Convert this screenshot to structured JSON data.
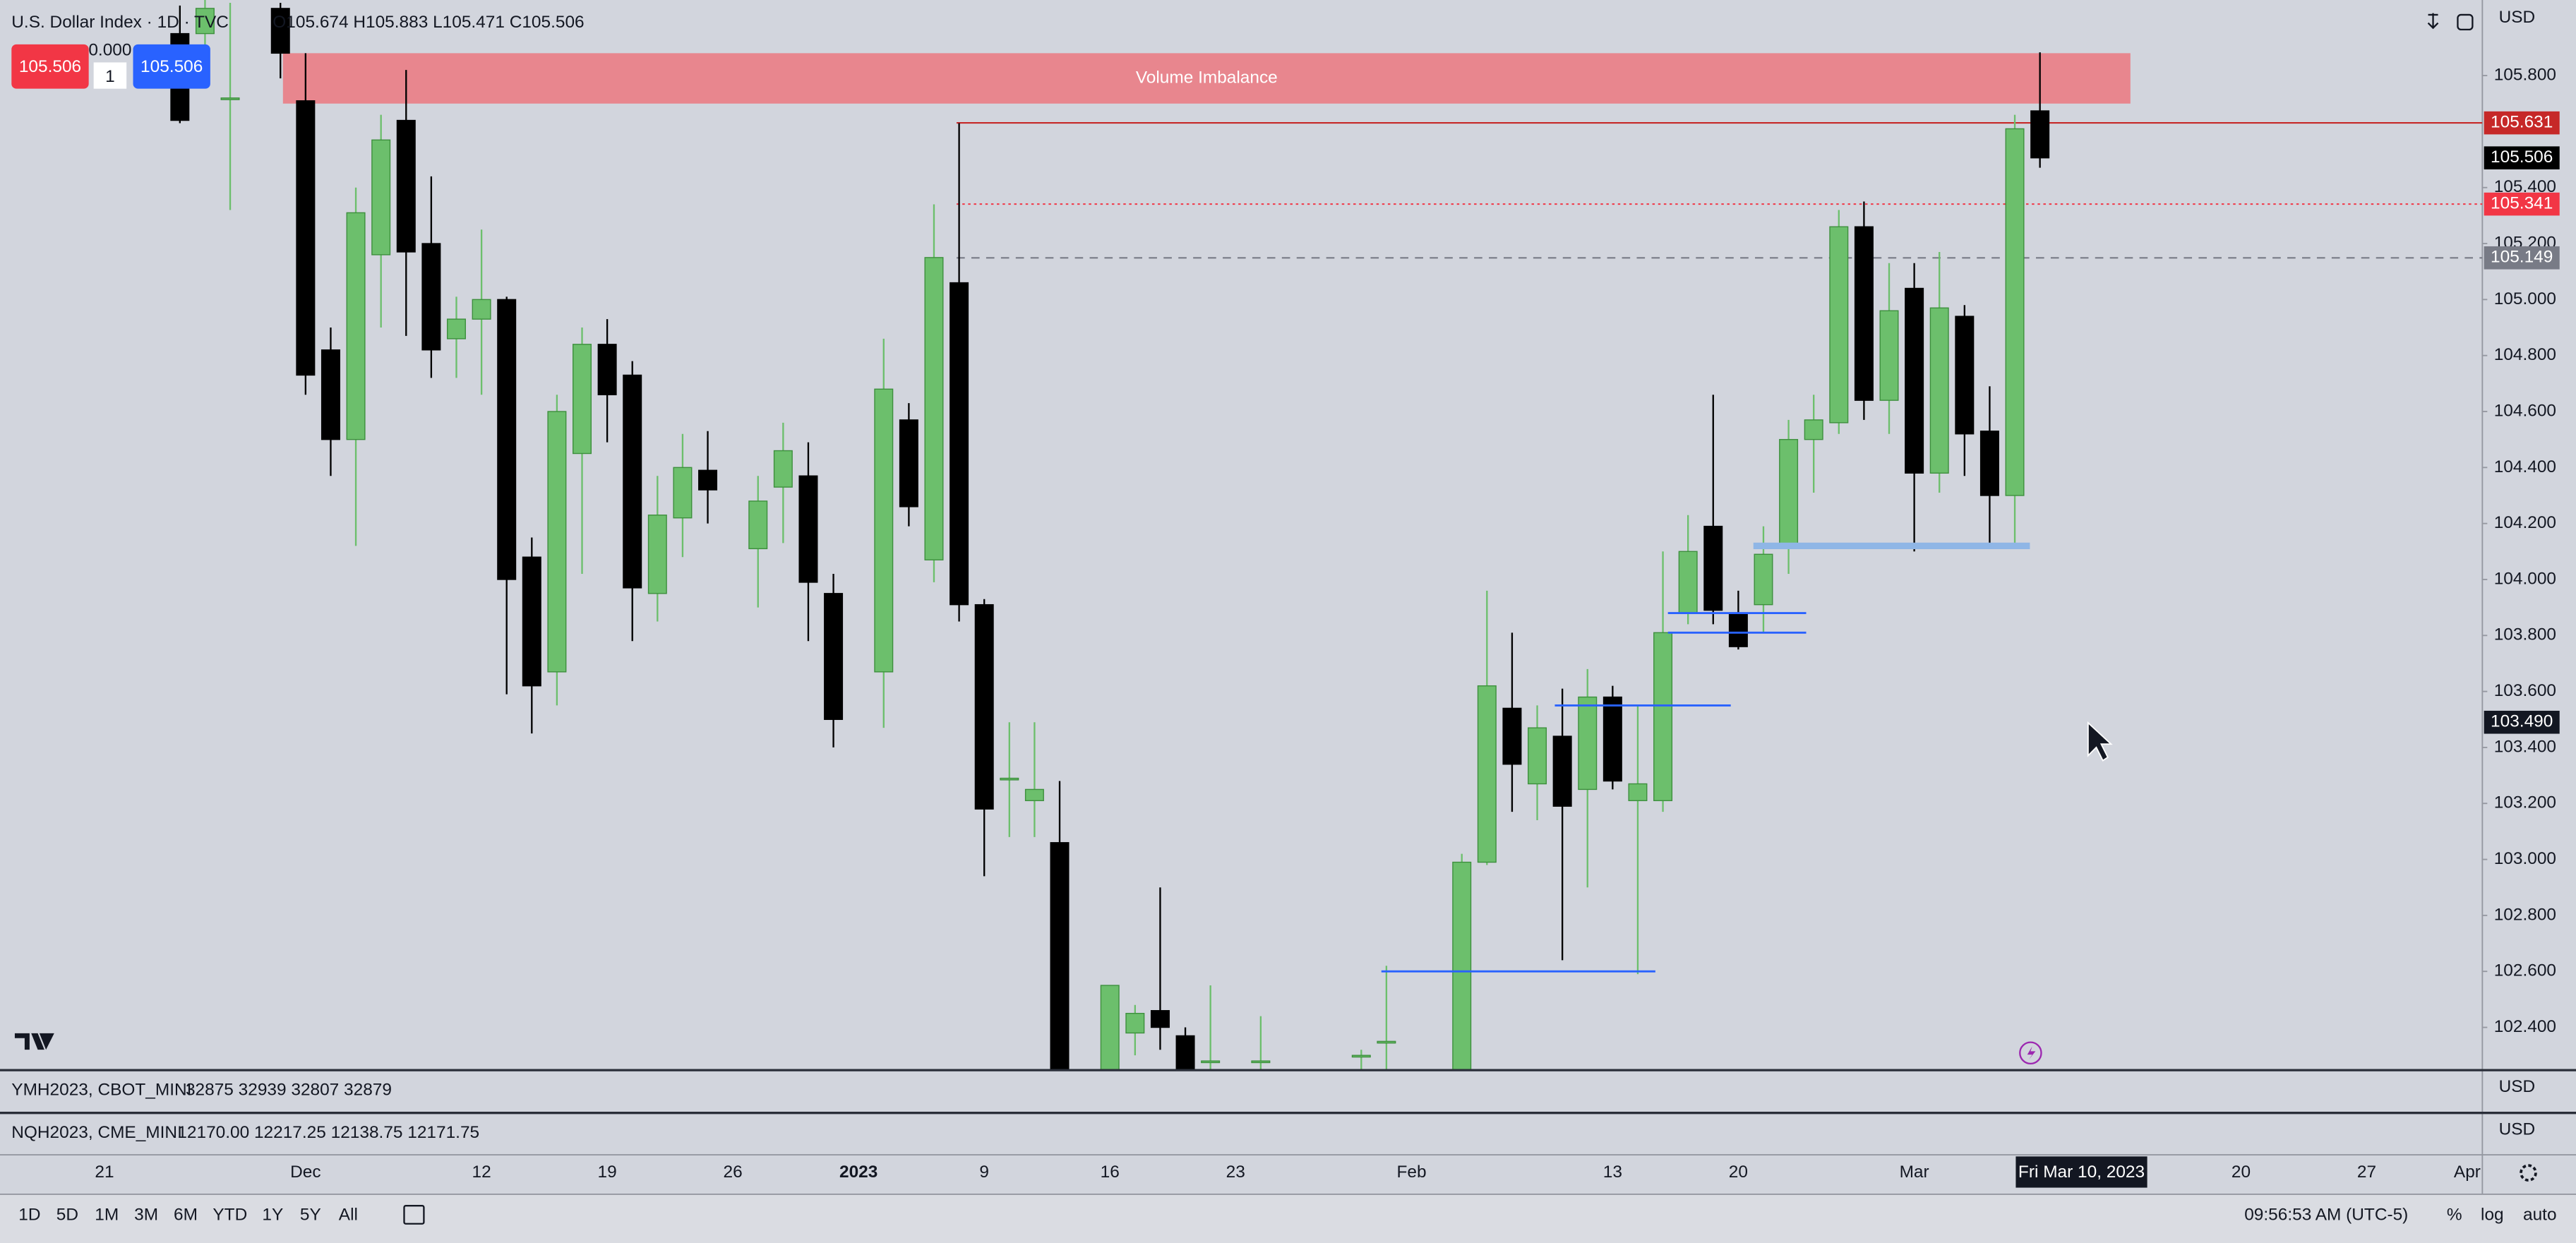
{
  "header": {
    "symbol": "U.S. Dollar Index · 1D · TVC",
    "ohlc": "O105.674 H105.883 L105.471 C105.506",
    "currency": "USD"
  },
  "order_panel": {
    "sell": "105.506",
    "spread": "0.000",
    "qty": "1",
    "buy": "105.506"
  },
  "chart_data": {
    "type": "candlestick",
    "categories": [
      "21",
      null,
      null,
      null,
      null,
      null,
      null,
      null,
      "Dec",
      null,
      null,
      null,
      null,
      null,
      null,
      "12",
      null,
      null,
      null,
      null,
      "19",
      null,
      null,
      null,
      null,
      "26",
      null,
      null,
      null,
      null,
      "2023",
      null,
      null,
      null,
      null,
      "9",
      null,
      null,
      null,
      null,
      "16",
      null,
      null,
      null,
      null,
      "23",
      null,
      null,
      null,
      null,
      null,
      null,
      "Feb",
      null,
      null,
      null,
      null,
      null,
      null,
      null,
      "13",
      null,
      null,
      null,
      null,
      "20",
      null,
      null,
      null,
      null,
      null,
      null,
      "Mar",
      null,
      null,
      null,
      null,
      null,
      null,
      null,
      null,
      null,
      null,
      null,
      null,
      "20",
      null,
      null,
      null,
      null,
      "27",
      null,
      null,
      null,
      "Apr"
    ],
    "open": [
      null,
      null,
      null,
      105.95,
      105.95,
      105.72,
      null,
      106.04,
      105.71,
      104.82,
      104.5,
      105.16,
      105.64,
      105.2,
      104.86,
      104.93,
      105.0,
      104.08,
      103.67,
      104.45,
      104.84,
      104.73,
      103.95,
      104.22,
      104.39,
      null,
      104.11,
      104.33,
      104.37,
      103.95,
      null,
      103.67,
      104.57,
      104.07,
      105.06,
      103.91,
      103.29,
      103.21,
      103.06,
      null,
      102.2,
      102.38,
      102.46,
      102.37,
      102.28,
      null,
      102.28,
      null,
      null,
      null,
      102.3,
      102.35,
      null,
      null,
      102.2,
      102.99,
      103.54,
      103.27,
      103.44,
      103.25,
      103.58,
      103.21,
      103.21,
      103.88,
      104.19,
      103.88,
      103.91,
      104.12,
      104.5,
      104.56,
      105.26,
      104.64,
      105.04,
      104.38,
      104.94,
      104.53,
      104.3,
      105.674,
      null,
      null,
      null,
      null,
      null,
      null,
      null,
      null,
      null,
      null,
      null,
      null,
      null,
      null,
      null,
      null,
      null
    ],
    "high": [
      null,
      null,
      null,
      106.05,
      106.07,
      106.06,
      null,
      106.06,
      105.88,
      104.9,
      105.4,
      105.66,
      105.82,
      105.44,
      105.01,
      105.25,
      105.01,
      104.15,
      104.66,
      104.9,
      104.93,
      104.78,
      104.37,
      104.52,
      104.53,
      null,
      104.37,
      104.56,
      104.49,
      104.02,
      null,
      104.86,
      104.63,
      105.34,
      105.63,
      103.93,
      103.49,
      103.49,
      103.28,
      null,
      102.55,
      102.48,
      102.9,
      102.4,
      102.55,
      null,
      102.44,
      null,
      null,
      null,
      102.32,
      102.62,
      null,
      null,
      103.02,
      103.96,
      103.81,
      103.55,
      103.61,
      103.68,
      103.62,
      103.55,
      104.1,
      104.23,
      104.66,
      103.96,
      104.19,
      104.57,
      104.66,
      105.32,
      105.35,
      105.13,
      105.13,
      105.17,
      104.98,
      104.69,
      105.66,
      105.883,
      null,
      null,
      null,
      null,
      null,
      null,
      null,
      null,
      null,
      null,
      null,
      null,
      null,
      null,
      null,
      null,
      null
    ],
    "low": [
      null,
      null,
      null,
      105.63,
      105.83,
      105.32,
      null,
      105.79,
      104.66,
      104.37,
      104.12,
      104.9,
      104.87,
      104.72,
      104.72,
      104.66,
      103.59,
      103.45,
      103.55,
      104.02,
      104.49,
      103.78,
      103.85,
      104.08,
      104.2,
      null,
      103.9,
      104.13,
      103.78,
      103.4,
      null,
      103.47,
      104.19,
      103.99,
      103.85,
      102.94,
      103.08,
      103.08,
      102.1,
      null,
      102.1,
      102.3,
      102.32,
      102.1,
      102.15,
      null,
      102.15,
      null,
      null,
      null,
      102.15,
      102.15,
      null,
      null,
      102.1,
      102.98,
      103.17,
      103.14,
      102.64,
      102.9,
      103.25,
      102.59,
      103.17,
      103.84,
      103.84,
      103.75,
      103.81,
      104.02,
      104.31,
      104.52,
      104.57,
      104.52,
      104.1,
      104.31,
      104.37,
      104.13,
      104.12,
      105.471,
      null,
      null,
      null,
      null,
      null,
      null,
      null,
      null,
      null,
      null,
      null,
      null,
      null,
      null,
      null,
      null,
      null
    ],
    "close": [
      null,
      null,
      null,
      105.64,
      106.04,
      105.72,
      null,
      105.88,
      104.73,
      104.5,
      105.31,
      105.57,
      105.17,
      104.82,
      104.93,
      105.0,
      104.0,
      103.62,
      104.6,
      104.84,
      104.66,
      103.97,
      104.23,
      104.4,
      104.32,
      null,
      104.28,
      104.46,
      103.99,
      103.5,
      null,
      104.68,
      104.26,
      105.15,
      103.91,
      103.18,
      103.29,
      103.25,
      102.2,
      null,
      102.55,
      102.45,
      102.4,
      102.2,
      102.28,
      null,
      102.28,
      null,
      null,
      null,
      102.3,
      102.35,
      null,
      null,
      102.99,
      103.62,
      103.34,
      103.47,
      103.19,
      103.58,
      103.28,
      103.27,
      103.81,
      104.1,
      103.89,
      103.76,
      104.09,
      104.5,
      104.57,
      105.26,
      104.64,
      104.96,
      104.38,
      104.97,
      104.52,
      104.3,
      105.61,
      105.506,
      null,
      null,
      null,
      null,
      null,
      null,
      null,
      null,
      null,
      null,
      null,
      null,
      null,
      null,
      null,
      null,
      null
    ],
    "up_color": "#6cbf6c",
    "down_color": "#000000",
    "ylim": [
      102.25,
      106.07
    ],
    "yticks": [
      {
        "value": 105.8,
        "label": "105.800"
      },
      {
        "value": 105.4,
        "label": "105.400"
      },
      {
        "value": 105.2,
        "label": "105.200"
      },
      {
        "value": 105.0,
        "label": "105.000"
      },
      {
        "value": 104.8,
        "label": "104.800"
      },
      {
        "value": 104.6,
        "label": "104.600"
      },
      {
        "value": 104.4,
        "label": "104.400"
      },
      {
        "value": 104.2,
        "label": "104.200"
      },
      {
        "value": 104.0,
        "label": "104.000"
      },
      {
        "value": 103.8,
        "label": "103.800"
      },
      {
        "value": 103.6,
        "label": "103.600"
      },
      {
        "value": 103.4,
        "label": "103.400"
      },
      {
        "value": 103.2,
        "label": "103.200"
      },
      {
        "value": 103.0,
        "label": "103.000"
      },
      {
        "value": 102.8,
        "label": "102.800"
      },
      {
        "value": 102.6,
        "label": "102.600"
      },
      {
        "value": 102.4,
        "label": "102.400"
      }
    ],
    "grid": false,
    "annotation": {
      "text": "Volume Imbalance",
      "low": 105.7,
      "high": 105.88,
      "from": 7.1,
      "to": 80.6,
      "color": "#e8868e"
    },
    "levels": [
      {
        "value": 104.12,
        "from": 65.6,
        "to": 76.6,
        "color": "#8fb6e6",
        "style": "thick"
      },
      {
        "value": 103.88,
        "from": 62.2,
        "to": 67.7,
        "color": "#2962ff",
        "style": "thin"
      },
      {
        "value": 103.81,
        "from": 62.2,
        "to": 67.7,
        "color": "#2962ff",
        "style": "thin"
      },
      {
        "value": 103.55,
        "from": 57.7,
        "to": 64.7,
        "color": "#2962ff",
        "style": "thin"
      },
      {
        "value": 102.6,
        "from": 50.8,
        "to": 61.7,
        "color": "#2962ff",
        "style": "thin"
      }
    ],
    "price_levels": [
      {
        "value": 105.631,
        "color": "#c62828",
        "line": "solid",
        "from": 33.9
      },
      {
        "value": 105.506,
        "color": "#000000"
      },
      {
        "value": 105.341,
        "color": "#f23645",
        "line": "dotted",
        "from": 33.9
      },
      {
        "value": 105.149,
        "color": "#787b86",
        "line": "dashed",
        "from": 33.9
      }
    ],
    "crosshair": {
      "price": {
        "value": 103.49,
        "label": "103.490"
      },
      "date": "Fri Mar 10, 2023"
    }
  },
  "panes": [
    {
      "symbol": "YMH2023, CBOT_MINI",
      "ohlc": "32875 32939 32807 32879",
      "currency": "USD"
    },
    {
      "symbol": "NQH2023, CME_MINI",
      "ohlc": "12170.00 12217.25 12138.75 12171.75",
      "currency": "USD"
    }
  ],
  "toolbar": {
    "ranges": [
      "1D",
      "5D",
      "1M",
      "3M",
      "6M",
      "YTD",
      "1Y",
      "5Y",
      "All"
    ],
    "clock": "09:56:53 AM (UTC-5)",
    "options": [
      "%",
      "log",
      "auto"
    ]
  }
}
